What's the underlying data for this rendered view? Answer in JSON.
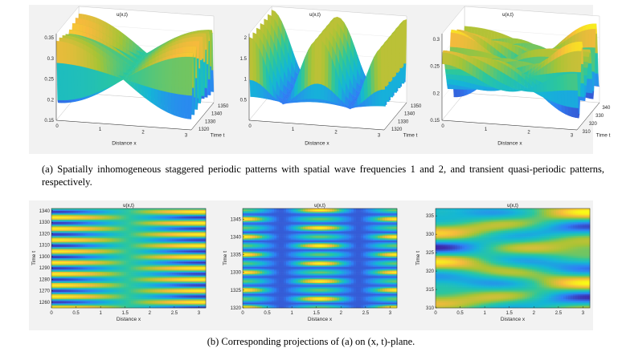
{
  "caption_a": "(a)  Spatially inhomogeneous staggered periodic patterns with spatial wave frequencies 1 and 2, and transient quasi-periodic patterns, respectively.",
  "caption_b": "(b)  Corresponding projections of (a) on (x, t)-plane.",
  "chart_data": [
    {
      "type": "surface",
      "title": "u(x,t)",
      "xlabel": "Distance x",
      "ylabel": "Time t",
      "xticks": [
        "0",
        "1",
        "2",
        "3"
      ],
      "yticks": [
        "1320",
        "1330",
        "1340",
        "1350"
      ],
      "zticks": [
        "0.15",
        "0.2",
        "0.25",
        "0.3",
        "0.35"
      ],
      "xlim": [
        0,
        3.14
      ],
      "ylim": [
        1315,
        1350
      ],
      "zlim": [
        0.15,
        0.36
      ],
      "spatial_wave_frequency": 1
    },
    {
      "type": "surface",
      "title": "u(x,t)",
      "xlabel": "Distance x",
      "ylabel": "Time t",
      "xticks": [
        "0",
        "1",
        "2",
        "3"
      ],
      "yticks": [
        "1320",
        "1330",
        "1340",
        "1350"
      ],
      "zticks": [
        "0.5",
        "1",
        "1.5",
        "2"
      ],
      "xlim": [
        0,
        3.14
      ],
      "ylim": [
        1315,
        1350
      ],
      "zlim": [
        0,
        2.1
      ],
      "spatial_wave_frequency": 2
    },
    {
      "type": "surface",
      "title": "u(x,t)",
      "xlabel": "Distance x",
      "ylabel": "Time t",
      "xticks": [
        "0",
        "1",
        "2",
        "3"
      ],
      "yticks": [
        "310",
        "320",
        "330",
        "340"
      ],
      "zticks": [
        "0.15",
        "0.2",
        "0.25",
        "0.3"
      ],
      "xlim": [
        0,
        3.14
      ],
      "ylim": [
        308,
        342
      ],
      "zlim": [
        0.15,
        0.31
      ],
      "pattern": "transient quasi-periodic"
    },
    {
      "type": "heatmap",
      "title": "u(x,t)",
      "xlabel": "Distance x",
      "ylabel": "Time t",
      "xticks": [
        "0",
        "0.5",
        "1",
        "1.5",
        "2",
        "2.5",
        "3"
      ],
      "yticks": [
        "1260",
        "1270",
        "1280",
        "1290",
        "1300",
        "1310",
        "1320",
        "1330",
        "1340"
      ],
      "xlim": [
        0,
        3.14
      ],
      "ylim": [
        1255,
        1342
      ]
    },
    {
      "type": "heatmap",
      "title": "u(x,t)",
      "xlabel": "Distance x",
      "ylabel": "Time t",
      "xticks": [
        "0",
        "0.5",
        "1",
        "1.5",
        "2",
        "2.5",
        "3"
      ],
      "yticks": [
        "1320",
        "1325",
        "1330",
        "1335",
        "1340",
        "1345"
      ],
      "xlim": [
        0,
        3.14
      ],
      "ylim": [
        1320,
        1348
      ]
    },
    {
      "type": "heatmap",
      "title": "u(x,t)",
      "xlabel": "Distance x",
      "ylabel": "Time t",
      "xticks": [
        "0",
        "0.5",
        "1",
        "1.5",
        "2",
        "2.5",
        "3"
      ],
      "yticks": [
        "310",
        "315",
        "320",
        "325",
        "330",
        "335"
      ],
      "xlim": [
        0,
        3.14
      ],
      "ylim": [
        310,
        337
      ]
    }
  ],
  "colormap": [
    "#3e26a8",
    "#2f80f5",
    "#14b6d6",
    "#2cc79c",
    "#a6c435",
    "#f6ba3c",
    "#f9fb15"
  ]
}
